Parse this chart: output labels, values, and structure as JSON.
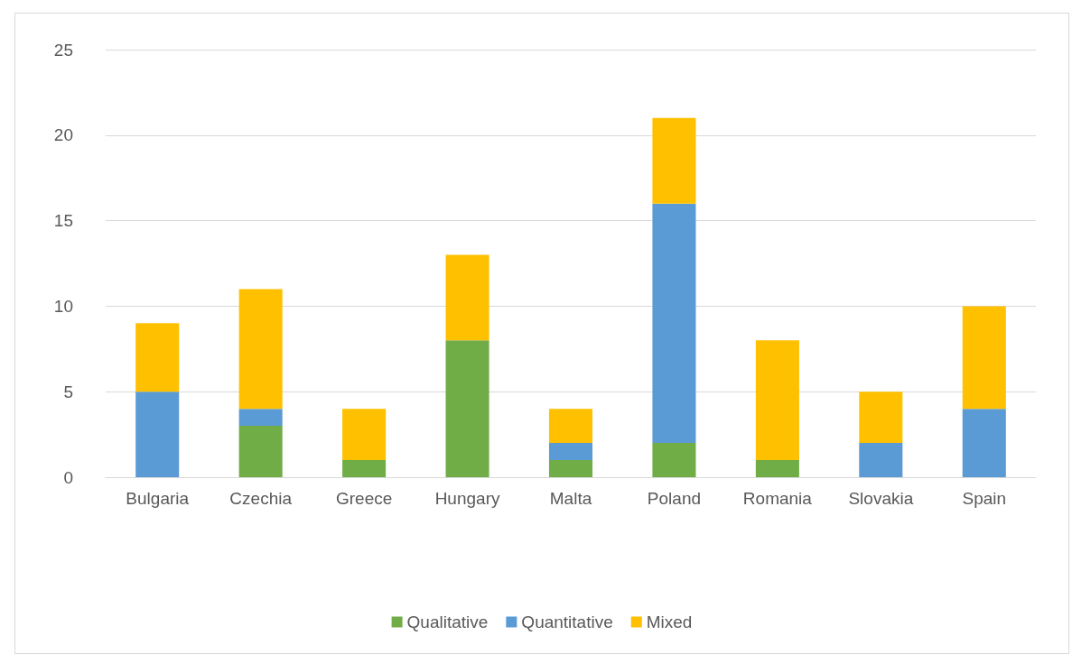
{
  "chart_data": {
    "type": "bar",
    "stacked": true,
    "categories": [
      "Bulgaria",
      "Czechia",
      "Greece",
      "Hungary",
      "Malta",
      "Poland",
      "Romania",
      "Slovakia",
      "Spain"
    ],
    "series": [
      {
        "name": "Qualitative",
        "color": "#70ad47",
        "values": [
          0,
          3,
          1,
          8,
          1,
          2,
          1,
          0,
          0
        ]
      },
      {
        "name": "Quantitative",
        "color": "#5b9bd5",
        "values": [
          5,
          1,
          0,
          0,
          1,
          14,
          0,
          2,
          4
        ]
      },
      {
        "name": "Mixed",
        "color": "#ffc000",
        "values": [
          4,
          7,
          3,
          5,
          2,
          5,
          7,
          3,
          6
        ]
      }
    ],
    "ylim": [
      0,
      25
    ],
    "yticks": [
      0,
      5,
      10,
      15,
      20,
      25
    ],
    "grid": "y",
    "legend": "bottom"
  }
}
